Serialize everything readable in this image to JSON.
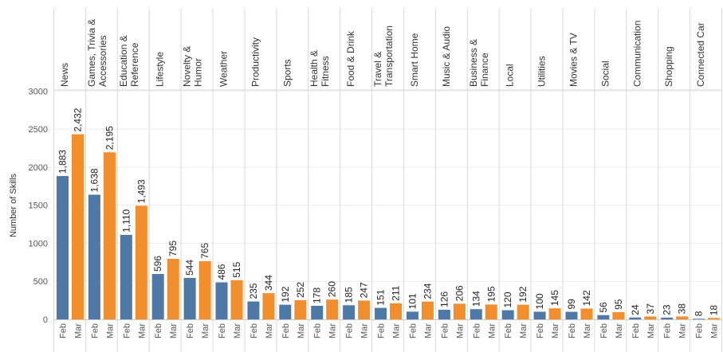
{
  "chart_data": {
    "type": "bar",
    "ylabel": "Number of Skills",
    "ylim": [
      0,
      3000
    ],
    "yticks": [
      0,
      500,
      1000,
      1500,
      2000,
      2500,
      3000
    ],
    "grid": true,
    "series_colors": {
      "Feb": "#4e79a7",
      "Mar": "#f28e2b"
    },
    "months": [
      "Feb",
      "Mar"
    ],
    "categories": [
      {
        "label": [
          "News"
        ],
        "values": [
          1883,
          2432
        ],
        "value_labels": [
          "1,883",
          "2,432"
        ]
      },
      {
        "label": [
          "Games, Trivia &",
          "Accessories"
        ],
        "values": [
          1638,
          2195
        ],
        "value_labels": [
          "1,638",
          "2,195"
        ]
      },
      {
        "label": [
          "Education &",
          "Reference"
        ],
        "values": [
          1110,
          1493
        ],
        "value_labels": [
          "1,110",
          "1,493"
        ]
      },
      {
        "label": [
          "Lifestyle"
        ],
        "values": [
          596,
          795
        ],
        "value_labels": [
          "596",
          "795"
        ]
      },
      {
        "label": [
          "Novelty &",
          "Humor"
        ],
        "values": [
          544,
          765
        ],
        "value_labels": [
          "544",
          "765"
        ]
      },
      {
        "label": [
          "Weather"
        ],
        "values": [
          486,
          515
        ],
        "value_labels": [
          "486",
          "515"
        ]
      },
      {
        "label": [
          "Productivity"
        ],
        "values": [
          235,
          344
        ],
        "value_labels": [
          "235",
          "344"
        ]
      },
      {
        "label": [
          "Sports"
        ],
        "values": [
          192,
          252
        ],
        "value_labels": [
          "192",
          "252"
        ]
      },
      {
        "label": [
          "Health &",
          "Fitness"
        ],
        "values": [
          178,
          260
        ],
        "value_labels": [
          "178",
          "260"
        ]
      },
      {
        "label": [
          "Food & Drink"
        ],
        "values": [
          185,
          247
        ],
        "value_labels": [
          "185",
          "247"
        ]
      },
      {
        "label": [
          "Travel &",
          "Transportation"
        ],
        "values": [
          151,
          211
        ],
        "value_labels": [
          "151",
          "211"
        ]
      },
      {
        "label": [
          "Smart Home"
        ],
        "values": [
          101,
          234
        ],
        "value_labels": [
          "101",
          "234"
        ]
      },
      {
        "label": [
          "Music & Audio"
        ],
        "values": [
          126,
          206
        ],
        "value_labels": [
          "126",
          "206"
        ]
      },
      {
        "label": [
          "Business &",
          "Finance"
        ],
        "values": [
          134,
          195
        ],
        "value_labels": [
          "134",
          "195"
        ]
      },
      {
        "label": [
          "Local"
        ],
        "values": [
          120,
          192
        ],
        "value_labels": [
          "120",
          "192"
        ]
      },
      {
        "label": [
          "Utilities"
        ],
        "values": [
          100,
          145
        ],
        "value_labels": [
          "100",
          "145"
        ]
      },
      {
        "label": [
          "Movies & TV"
        ],
        "values": [
          99,
          142
        ],
        "value_labels": [
          "99",
          "142"
        ]
      },
      {
        "label": [
          "Social"
        ],
        "values": [
          56,
          95
        ],
        "value_labels": [
          "56",
          "95"
        ]
      },
      {
        "label": [
          "Communication"
        ],
        "values": [
          24,
          37
        ],
        "value_labels": [
          "24",
          "37"
        ]
      },
      {
        "label": [
          "Shopping"
        ],
        "values": [
          23,
          38
        ],
        "value_labels": [
          "23",
          "38"
        ]
      },
      {
        "label": [
          "Connected Car"
        ],
        "values": [
          8,
          18
        ],
        "value_labels": [
          "8",
          "18"
        ]
      }
    ]
  }
}
